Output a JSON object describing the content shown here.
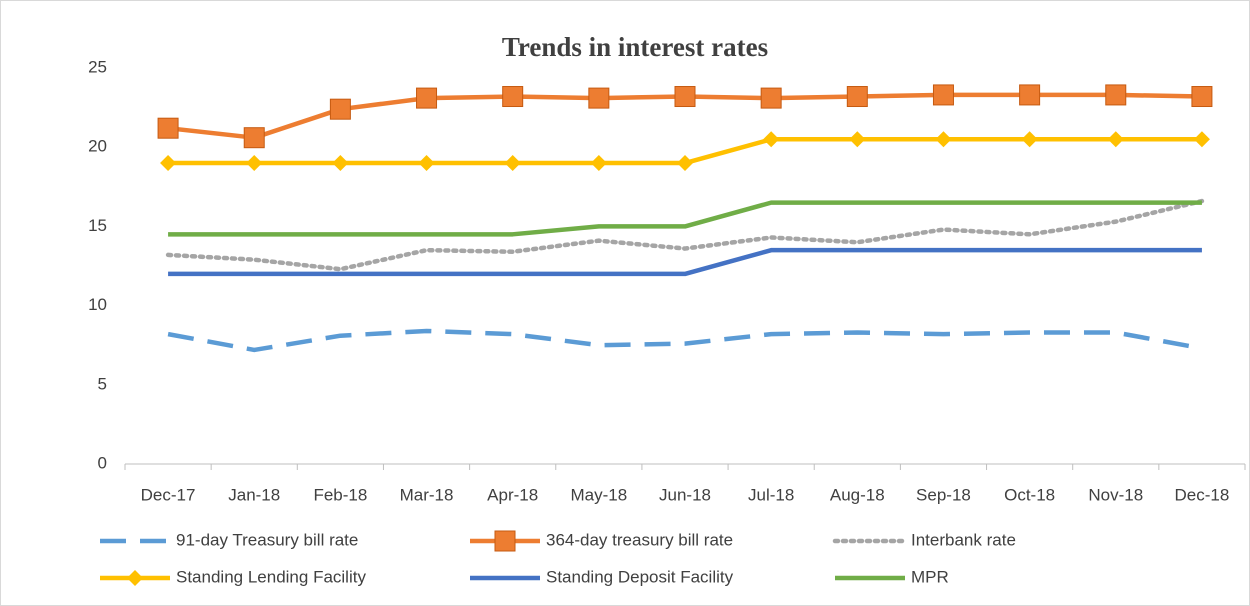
{
  "chart_data": {
    "type": "line",
    "title": "Trends in interest rates",
    "categories": [
      "Dec-17",
      "Jan-18",
      "Feb-18",
      "Mar-18",
      "Apr-18",
      "May-18",
      "Jun-18",
      "Jul-18",
      "Aug-18",
      "Sep-18",
      "Oct-18",
      "Nov-18",
      "Dec-18"
    ],
    "ylim": [
      0,
      25
    ],
    "yticks": [
      0,
      5,
      10,
      15,
      20,
      25
    ],
    "grid": false,
    "legend": "bottom",
    "series": [
      {
        "name": "91-day Treasury bill rate",
        "color": "#5b9bd5",
        "line_style": "dashed",
        "marker": "none",
        "values": [
          8.2,
          7.2,
          8.1,
          8.4,
          8.2,
          7.5,
          7.6,
          8.2,
          8.3,
          8.2,
          8.3,
          8.3,
          7.3
        ]
      },
      {
        "name": "364-day treasury bill rate",
        "color": "#ed7d31",
        "line_style": "solid",
        "marker": "square",
        "values": [
          21.2,
          20.6,
          22.4,
          23.1,
          23.2,
          23.1,
          23.2,
          23.1,
          23.2,
          23.3,
          23.3,
          23.3,
          23.2
        ]
      },
      {
        "name": "Interbank rate",
        "color": "#a5a5a5",
        "line_style": "dotted",
        "marker": "none",
        "values": [
          13.2,
          12.9,
          12.3,
          13.5,
          13.4,
          14.1,
          13.6,
          14.3,
          14.0,
          14.8,
          14.5,
          15.3,
          16.6
        ]
      },
      {
        "name": "Standing Lending Facility",
        "color": "#ffc000",
        "line_style": "solid",
        "marker": "diamond",
        "values": [
          19,
          19,
          19,
          19,
          19,
          19,
          19,
          20.5,
          20.5,
          20.5,
          20.5,
          20.5,
          20.5
        ]
      },
      {
        "name": "Standing Deposit Facility",
        "color": "#4472c4",
        "line_style": "solid",
        "marker": "none",
        "values": [
          12,
          12,
          12,
          12,
          12,
          12,
          12,
          13.5,
          13.5,
          13.5,
          13.5,
          13.5,
          13.5
        ]
      },
      {
        "name": "MPR",
        "color": "#70ad47",
        "line_style": "solid",
        "marker": "none",
        "values": [
          14.5,
          14.5,
          14.5,
          14.5,
          14.5,
          15,
          15,
          16.5,
          16.5,
          16.5,
          16.5,
          16.5,
          16.5
        ]
      }
    ]
  }
}
